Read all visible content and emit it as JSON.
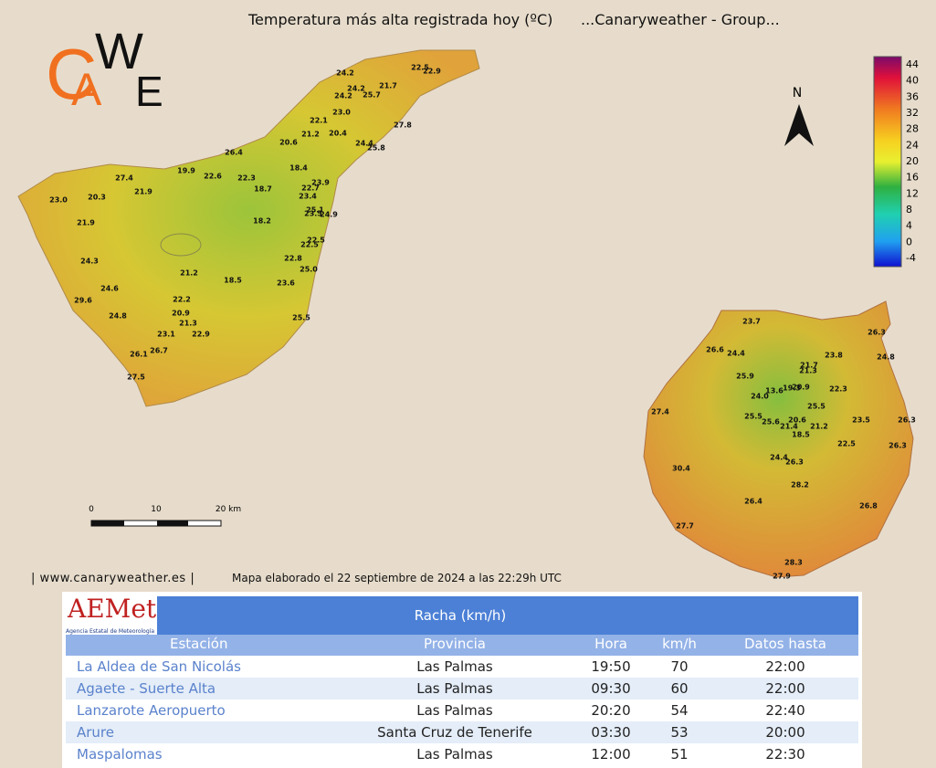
{
  "header": {
    "title": "Temperatura más alta registrada hoy (ºC)",
    "group": "...Canaryweather - Group..."
  },
  "logo": {
    "letters": [
      "C",
      "A",
      "W",
      "E"
    ]
  },
  "north": "N",
  "legend": {
    "labels": [
      "44",
      "40",
      "36",
      "32",
      "28",
      "24",
      "20",
      "16",
      "12",
      "8",
      "4",
      "0",
      "-4"
    ]
  },
  "scale_bar": {
    "labels": [
      "0",
      "10",
      "20 km"
    ]
  },
  "tenerife": {
    "labels": [
      "22.5",
      "22.9",
      "24.2",
      "24.2",
      "21.7",
      "24.2",
      "25.7",
      "23.0",
      "22.1",
      "27.8",
      "21.2",
      "20.4",
      "20.6",
      "24.4",
      "25.8",
      "26.4",
      "18.4",
      "19.9",
      "22.6",
      "22.3",
      "27.4",
      "23.9",
      "18.7",
      "22.7",
      "21.9",
      "23.0",
      "20.3",
      "23.4",
      "25.1",
      "23.5",
      "24.9",
      "18.2",
      "21.9",
      "22.5",
      "22.5",
      "24.3",
      "22.8",
      "25.0",
      "21.2",
      "18.5",
      "23.6",
      "24.6",
      "29.6",
      "22.2",
      "20.9",
      "24.8",
      "25.5",
      "21.3",
      "23.1",
      "22.9",
      "26.7",
      "26.1",
      "27.5"
    ]
  },
  "gran_canaria": {
    "labels": [
      "23.7",
      "26.3",
      "26.6",
      "24.4",
      "23.8",
      "24.8",
      "21.7",
      "21.3",
      "25.9",
      "13.6",
      "19.3",
      "20.9",
      "22.3",
      "24.0",
      "25.5",
      "27.4",
      "25.5",
      "26.3",
      "25.6",
      "20.6",
      "23.5",
      "21.4",
      "21.2",
      "18.5",
      "22.5",
      "26.3",
      "24.4",
      "26.3",
      "30.4",
      "28.2",
      "26.4",
      "26.8",
      "27.7",
      "28.3",
      "27.9"
    ]
  },
  "footer": {
    "site": "| www.canaryweather.es |",
    "note": "Mapa elaborado el 22 septiembre de 2024 a las 22:29h UTC"
  },
  "table": {
    "logo": "AEMet",
    "logo_sub": "Agencia Estatal de Meteorología",
    "title": "Racha (km/h)",
    "columns": [
      "Estación",
      "Provincia",
      "Hora",
      "km/h",
      "Datos hasta"
    ],
    "rows": [
      [
        "La Aldea de San Nicolás",
        "Las Palmas",
        "19:50",
        "70",
        "22:00"
      ],
      [
        "Agaete - Suerte Alta",
        "Las Palmas",
        "09:30",
        "60",
        "22:00"
      ],
      [
        "Lanzarote Aeropuerto",
        "Las Palmas",
        "20:20",
        "54",
        "22:40"
      ],
      [
        "Arure",
        "Santa Cruz de Tenerife",
        "03:30",
        "53",
        "20:00"
      ],
      [
        "Maspalomas",
        "Las Palmas",
        "12:00",
        "51",
        "22:30"
      ]
    ]
  }
}
